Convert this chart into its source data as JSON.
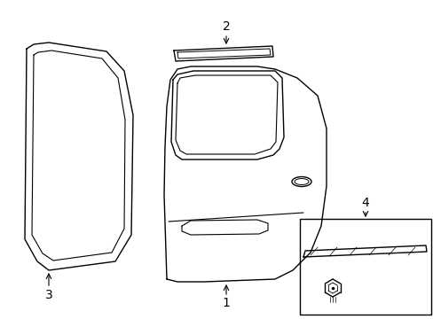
{
  "bg_color": "#ffffff",
  "line_color": "#000000",
  "lw": 1.0,
  "label_fontsize": 10,
  "fig_width": 4.89,
  "fig_height": 3.6,
  "dpi": 100
}
